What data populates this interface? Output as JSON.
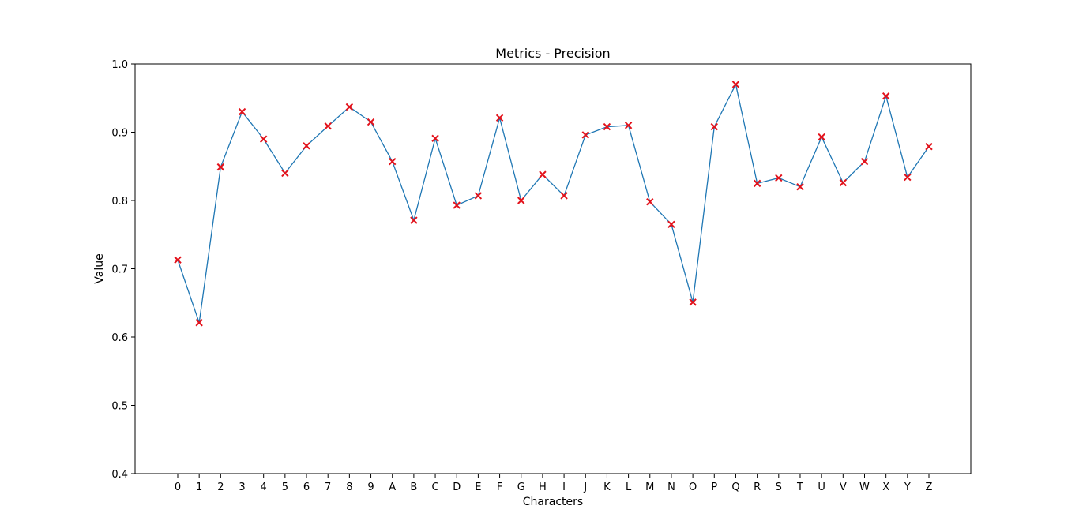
{
  "chart_data": {
    "type": "line",
    "title": "Metrics - Precision",
    "xlabel": "Characters",
    "ylabel": "Value",
    "ylim": [
      0.4,
      1.0
    ],
    "yticks": [
      "0.4",
      "0.5",
      "0.6",
      "0.7",
      "0.8",
      "0.9",
      "1.0"
    ],
    "grid": false,
    "categories": [
      "0",
      "1",
      "2",
      "3",
      "4",
      "5",
      "6",
      "7",
      "8",
      "9",
      "A",
      "B",
      "C",
      "D",
      "E",
      "F",
      "G",
      "H",
      "I",
      "J",
      "K",
      "L",
      "M",
      "N",
      "O",
      "P",
      "Q",
      "R",
      "S",
      "T",
      "U",
      "V",
      "W",
      "X",
      "Y",
      "Z"
    ],
    "series": [
      {
        "values": [
          0.713,
          0.621,
          0.849,
          0.93,
          0.89,
          0.84,
          0.88,
          0.909,
          0.937,
          0.915,
          0.857,
          0.771,
          0.891,
          0.793,
          0.807,
          0.921,
          0.8,
          0.838,
          0.807,
          0.896,
          0.908,
          0.91,
          0.798,
          0.765,
          0.651,
          0.908,
          0.97,
          0.825,
          0.833,
          0.82,
          0.893,
          0.826,
          0.857,
          0.953,
          0.834,
          0.879
        ],
        "line_color": "#1f77b4",
        "marker_color": "#e3121b",
        "marker": "x"
      }
    ]
  }
}
